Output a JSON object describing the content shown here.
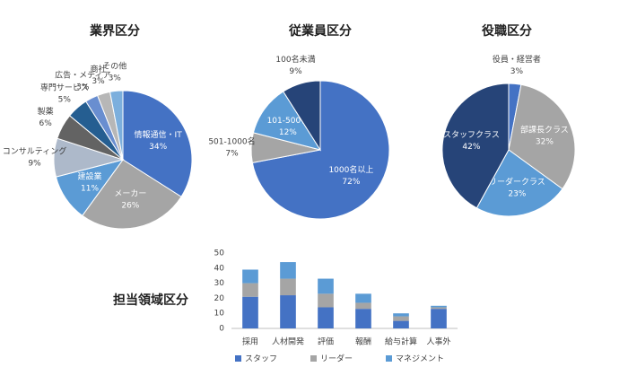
{
  "chart_data": [
    {
      "type": "pie",
      "title": "業界区分",
      "categories": [
        "情報通信・IT",
        "メーカー",
        "建設業",
        "コンサルティング",
        "製薬",
        "専門サービス",
        "広告・メディア",
        "商社",
        "その他"
      ],
      "values": [
        34,
        26,
        11,
        9,
        6,
        5,
        3,
        3,
        3
      ],
      "value_labels": [
        "34%",
        "26%",
        "11%",
        "9%",
        "6%",
        "5%",
        "3%",
        "3%",
        "3%"
      ],
      "colors": [
        "#4472c4",
        "#a5a5a5",
        "#5b9bd5",
        "#adb9ca",
        "#636363",
        "#255e91",
        "#698ed0",
        "#b7b7b7",
        "#7cafdd"
      ]
    },
    {
      "type": "pie",
      "title": "従業員区分",
      "categories": [
        "1000名以上",
        "501-1000名",
        "101-500名",
        "100名未満"
      ],
      "values": [
        72,
        7,
        12,
        9
      ],
      "value_labels": [
        "72%",
        "7%",
        "12%",
        "9%"
      ],
      "colors": [
        "#4472c4",
        "#a5a5a5",
        "#5b9bd5",
        "#264478"
      ]
    },
    {
      "type": "pie",
      "title": "役職区分",
      "categories": [
        "役員・経営者",
        "部課長クラス",
        "リーダークラス",
        "スタッフクラス"
      ],
      "values": [
        3,
        32,
        23,
        42
      ],
      "value_labels": [
        "3%",
        "32%",
        "23%",
        "42%"
      ],
      "colors": [
        "#4472c4",
        "#a5a5a5",
        "#5b9bd5",
        "#264478"
      ]
    },
    {
      "type": "bar",
      "stacked": true,
      "title": "担当領域区分",
      "categories": [
        "採用",
        "人材開発",
        "評価",
        "報酬",
        "給与計算",
        "人事外"
      ],
      "series": [
        {
          "name": "スタッフ",
          "color": "#4472c4",
          "values": [
            21,
            22,
            14,
            13,
            5,
            13
          ]
        },
        {
          "name": "リーダー",
          "color": "#a5a5a5",
          "values": [
            9,
            11,
            9,
            4,
            3,
            1
          ]
        },
        {
          "name": "マネジメント",
          "color": "#5b9bd5",
          "values": [
            9,
            11,
            10,
            6,
            2,
            1
          ]
        }
      ],
      "ylim": [
        0,
        50
      ],
      "yticks": [
        0,
        10,
        20,
        30,
        40,
        50
      ],
      "grid": false,
      "legend": "bottom"
    }
  ]
}
